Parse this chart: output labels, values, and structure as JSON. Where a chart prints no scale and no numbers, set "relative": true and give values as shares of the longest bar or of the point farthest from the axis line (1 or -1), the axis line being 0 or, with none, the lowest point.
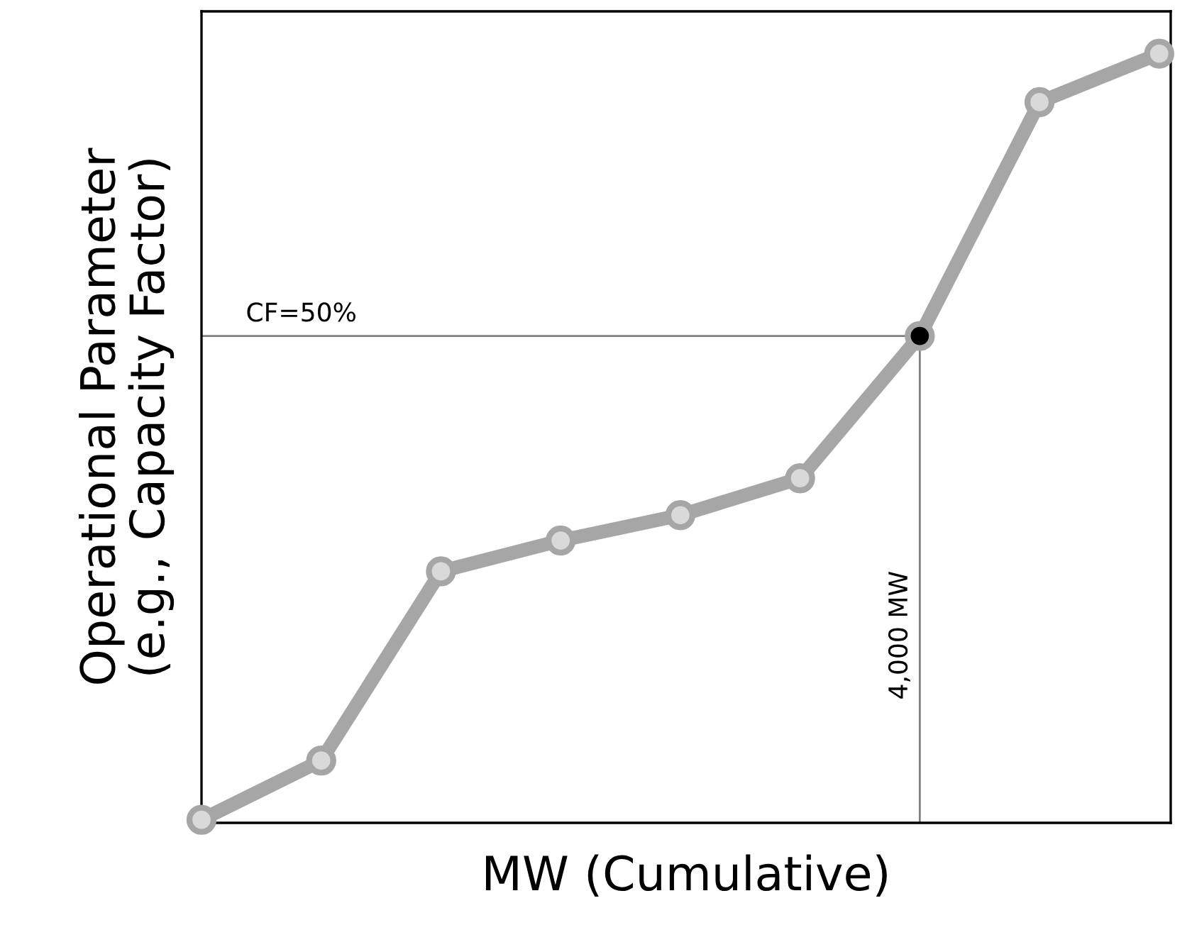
{
  "chart_data": {
    "type": "line",
    "relative": true,
    "xlabel": "MW (Cumulative)",
    "ylabel": "Operational Parameter\n(e.g., Capacity Factor)",
    "categories": [
      null,
      null,
      null,
      null,
      null,
      null,
      null,
      null,
      null
    ],
    "tick_labels": false,
    "marker": "circle",
    "line_style": "solid",
    "series": [
      {
        "color": "#a6a6a6",
        "colors": [
          "#d9d9d9",
          "#d9d9d9",
          "#d9d9d9",
          "#d9d9d9",
          "#d9d9d9",
          "#d9d9d9",
          "#000000",
          "#d9d9d9",
          "#d9d9d9"
        ],
        "values": [
          0.004,
          0.081,
          0.327,
          0.367,
          0.4,
          0.448,
          0.633,
          0.937,
          1.0
        ]
      }
    ],
    "ref_lines": [
      {
        "axis": "y",
        "value": 0.633,
        "color": "#808080"
      }
    ],
    "annotations": [
      "CF=50%",
      "4,000 MW"
    ]
  }
}
